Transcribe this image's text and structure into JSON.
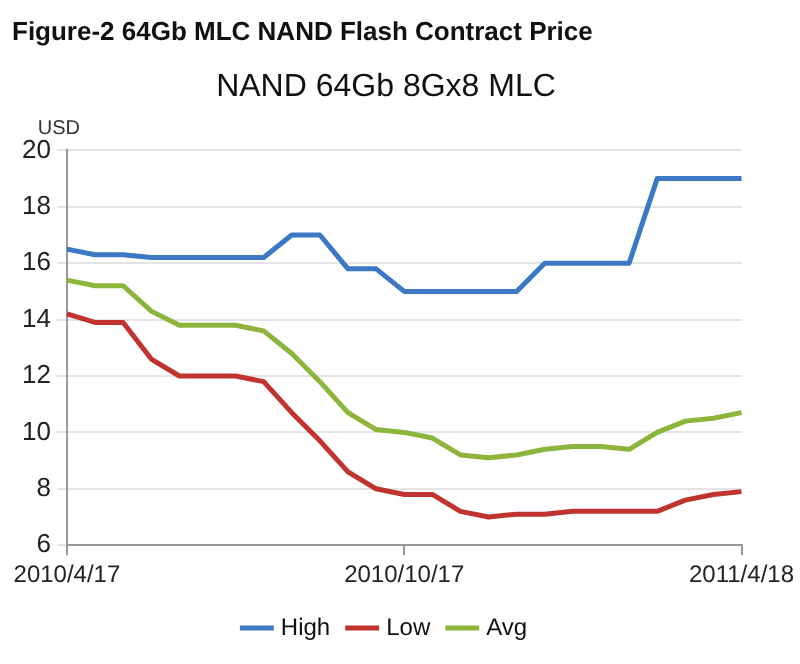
{
  "chart_data": {
    "type": "line",
    "title": "Figure-2 64Gb MLC NAND Flash Contract Price",
    "subtitle": "NAND 64Gb 8Gx8 MLC",
    "ylabel": "USD",
    "categories": [
      "2010/4/17",
      null,
      null,
      null,
      null,
      null,
      null,
      null,
      null,
      null,
      null,
      null,
      "2010/10/17",
      null,
      null,
      null,
      null,
      null,
      null,
      null,
      null,
      null,
      null,
      null,
      "2011/4/18"
    ],
    "series": [
      {
        "name": "High",
        "color": "#3c78c3",
        "values": [
          16.5,
          16.3,
          16.3,
          16.2,
          16.2,
          16.2,
          16.2,
          16.2,
          17,
          17,
          15.8,
          15.8,
          15,
          15,
          15,
          15,
          15,
          16,
          16,
          16,
          16,
          19,
          19,
          19,
          19
        ]
      },
      {
        "name": "Low",
        "color": "#c0332f",
        "values": [
          14.2,
          13.9,
          13.9,
          12.6,
          12,
          12,
          12,
          11.8,
          10.7,
          9.7,
          8.6,
          8,
          7.8,
          7.8,
          7.2,
          7,
          7.1,
          7.1,
          7.2,
          7.2,
          7.2,
          7.2,
          7.6,
          7.8,
          7.9
        ]
      },
      {
        "name": "Avg",
        "color": "#8db53c",
        "values": [
          15.4,
          15.2,
          15.2,
          14.3,
          13.8,
          13.8,
          13.8,
          13.6,
          12.8,
          11.8,
          10.7,
          10.1,
          10,
          9.8,
          9.2,
          9.1,
          9.2,
          9.4,
          9.5,
          9.5,
          9.4,
          10,
          10.4,
          10.5,
          10.7
        ]
      }
    ],
    "ylim": [
      6,
      20
    ],
    "yticks": [
      6,
      8,
      10,
      12,
      14,
      16,
      18,
      20
    ],
    "grid": "y",
    "legend": "bottom",
    "marker": "none",
    "line_style": "solid"
  }
}
